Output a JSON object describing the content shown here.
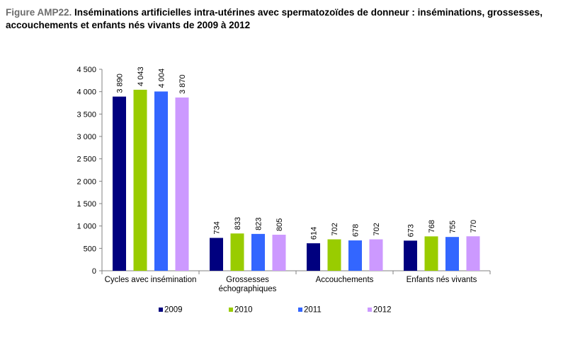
{
  "figure": {
    "label": "Figure AMP22.",
    "title": "Inséminations artificielles intra-utérines avec spermatozoïdes de donneur : inséminations, grossesses, accouchements et enfants nés vivants de 2009 à 2012"
  },
  "chart_data": {
    "type": "bar",
    "categories": [
      [
        "Cycles avec insémination"
      ],
      [
        "Grossesses",
        "échographiques"
      ],
      [
        "Accouchements"
      ],
      [
        "Enfants nés vivants"
      ]
    ],
    "series": [
      {
        "name": "2009",
        "color": "#00007f",
        "values": [
          3890,
          734,
          614,
          673
        ],
        "labels": [
          "3 890",
          "734",
          "614",
          "673"
        ]
      },
      {
        "name": "2010",
        "color": "#99cc00",
        "values": [
          4043,
          833,
          702,
          768
        ],
        "labels": [
          "4 043",
          "833",
          "702",
          "768"
        ]
      },
      {
        "name": "2011",
        "color": "#3366ff",
        "values": [
          4004,
          823,
          678,
          755
        ],
        "labels": [
          "4 004",
          "823",
          "678",
          "755"
        ]
      },
      {
        "name": "2012",
        "color": "#cc99ff",
        "values": [
          3870,
          805,
          702,
          770
        ],
        "labels": [
          "3 870",
          "805",
          "702",
          "770"
        ]
      }
    ],
    "ylim": [
      0,
      4500
    ],
    "yticks": [
      0,
      500,
      1000,
      1500,
      2000,
      2500,
      3000,
      3500,
      4000,
      4500
    ],
    "ytick_labels": [
      "0",
      "500",
      "1 000",
      "1 500",
      "2 000",
      "2 500",
      "3 000",
      "3 500",
      "4 000",
      "4 500"
    ],
    "xlabel": "",
    "ylabel": "",
    "grid": false,
    "legend": "bottom"
  }
}
